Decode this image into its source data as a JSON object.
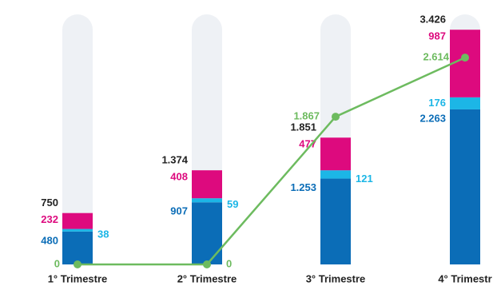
{
  "chart_data": {
    "type": "bar",
    "categories": [
      "1° Trimestre",
      "2° Trimestre",
      "3° Trimestre",
      "4° Trimestr"
    ],
    "series": [
      {
        "name": "blue",
        "color": "#0b6db7",
        "values": [
          480,
          907,
          1253,
          2263
        ]
      },
      {
        "name": "cyan",
        "color": "#1cb6e6",
        "values": [
          38,
          59,
          121,
          176
        ]
      },
      {
        "name": "magenta",
        "color": "#dd0a7e",
        "values": [
          232,
          408,
          477,
          987
        ]
      }
    ],
    "totals": {
      "color": "#222222",
      "values": [
        750,
        1374,
        1851,
        3426
      ],
      "value_labels": [
        "750",
        "1.374",
        "1.851",
        "3.426"
      ]
    },
    "line": {
      "type": "line",
      "color": "#6dbb5f",
      "axis": "y2",
      "values": [
        0,
        0,
        1867,
        2614
      ],
      "value_labels": [
        "0",
        "0",
        "1.867",
        "2.614"
      ]
    },
    "series_value_labels": [
      [
        "480",
        "907",
        "1.253",
        "2.263"
      ],
      [
        "38",
        "59",
        "121",
        "176"
      ],
      [
        "232",
        "408",
        "477",
        "987"
      ]
    ],
    "ylim": [
      0,
      3650
    ],
    "y2lim": [
      0,
      3160
    ]
  }
}
